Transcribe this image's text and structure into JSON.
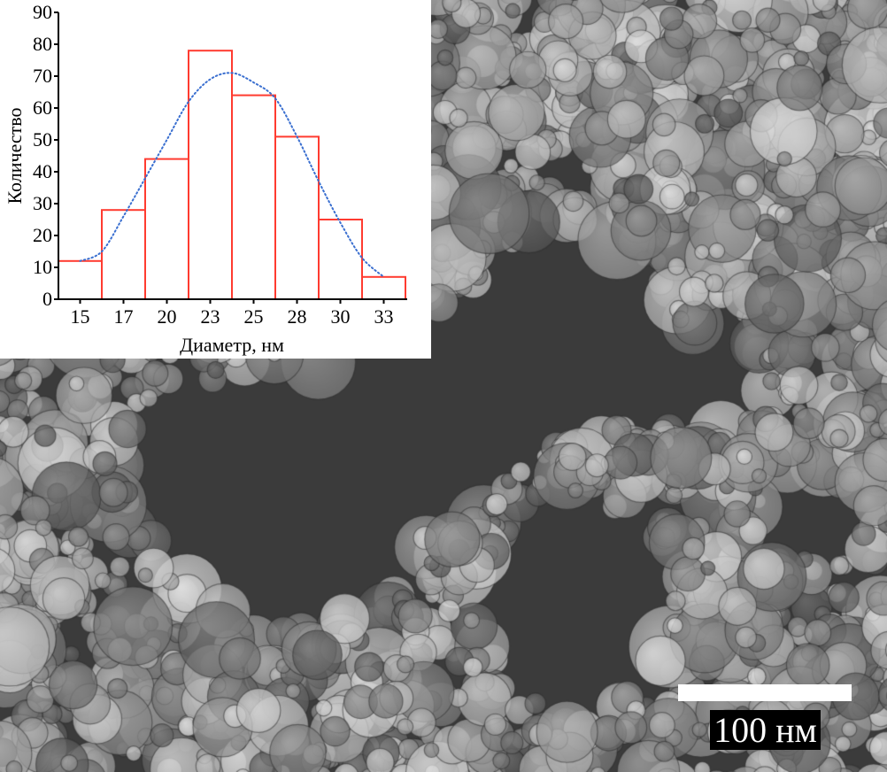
{
  "chart_data": {
    "type": "bar",
    "subtype": "histogram",
    "xlabel": "Диаметр, нм",
    "ylabel": "Количество",
    "categories": [
      "15",
      "17",
      "20",
      "23",
      "25",
      "28",
      "30",
      "33"
    ],
    "values": [
      12,
      28,
      44,
      78,
      64,
      51,
      25,
      7
    ],
    "ylim": [
      0,
      90
    ],
    "yticks": [
      "0",
      "10",
      "20",
      "30",
      "40",
      "50",
      "60",
      "70",
      "80",
      "90"
    ],
    "grid": false,
    "bar_color": "#ff3b30",
    "bar_fill": "#ffffff",
    "fit_curve": {
      "style": "dotted",
      "color": "#3a6fd0",
      "x_nm": [
        15,
        16.29,
        17.57,
        18.86,
        20.14,
        21.43,
        22.71,
        24,
        25.29,
        26.57,
        27.86,
        29.14,
        30.43,
        31.71,
        33
      ],
      "y": [
        12,
        15,
        26,
        38,
        50,
        62,
        69,
        71,
        68,
        63,
        51,
        37,
        24,
        13,
        7
      ]
    }
  },
  "image": {
    "type": "TEM micrograph of nanoparticles",
    "scale_bar_label": "100 нм"
  }
}
